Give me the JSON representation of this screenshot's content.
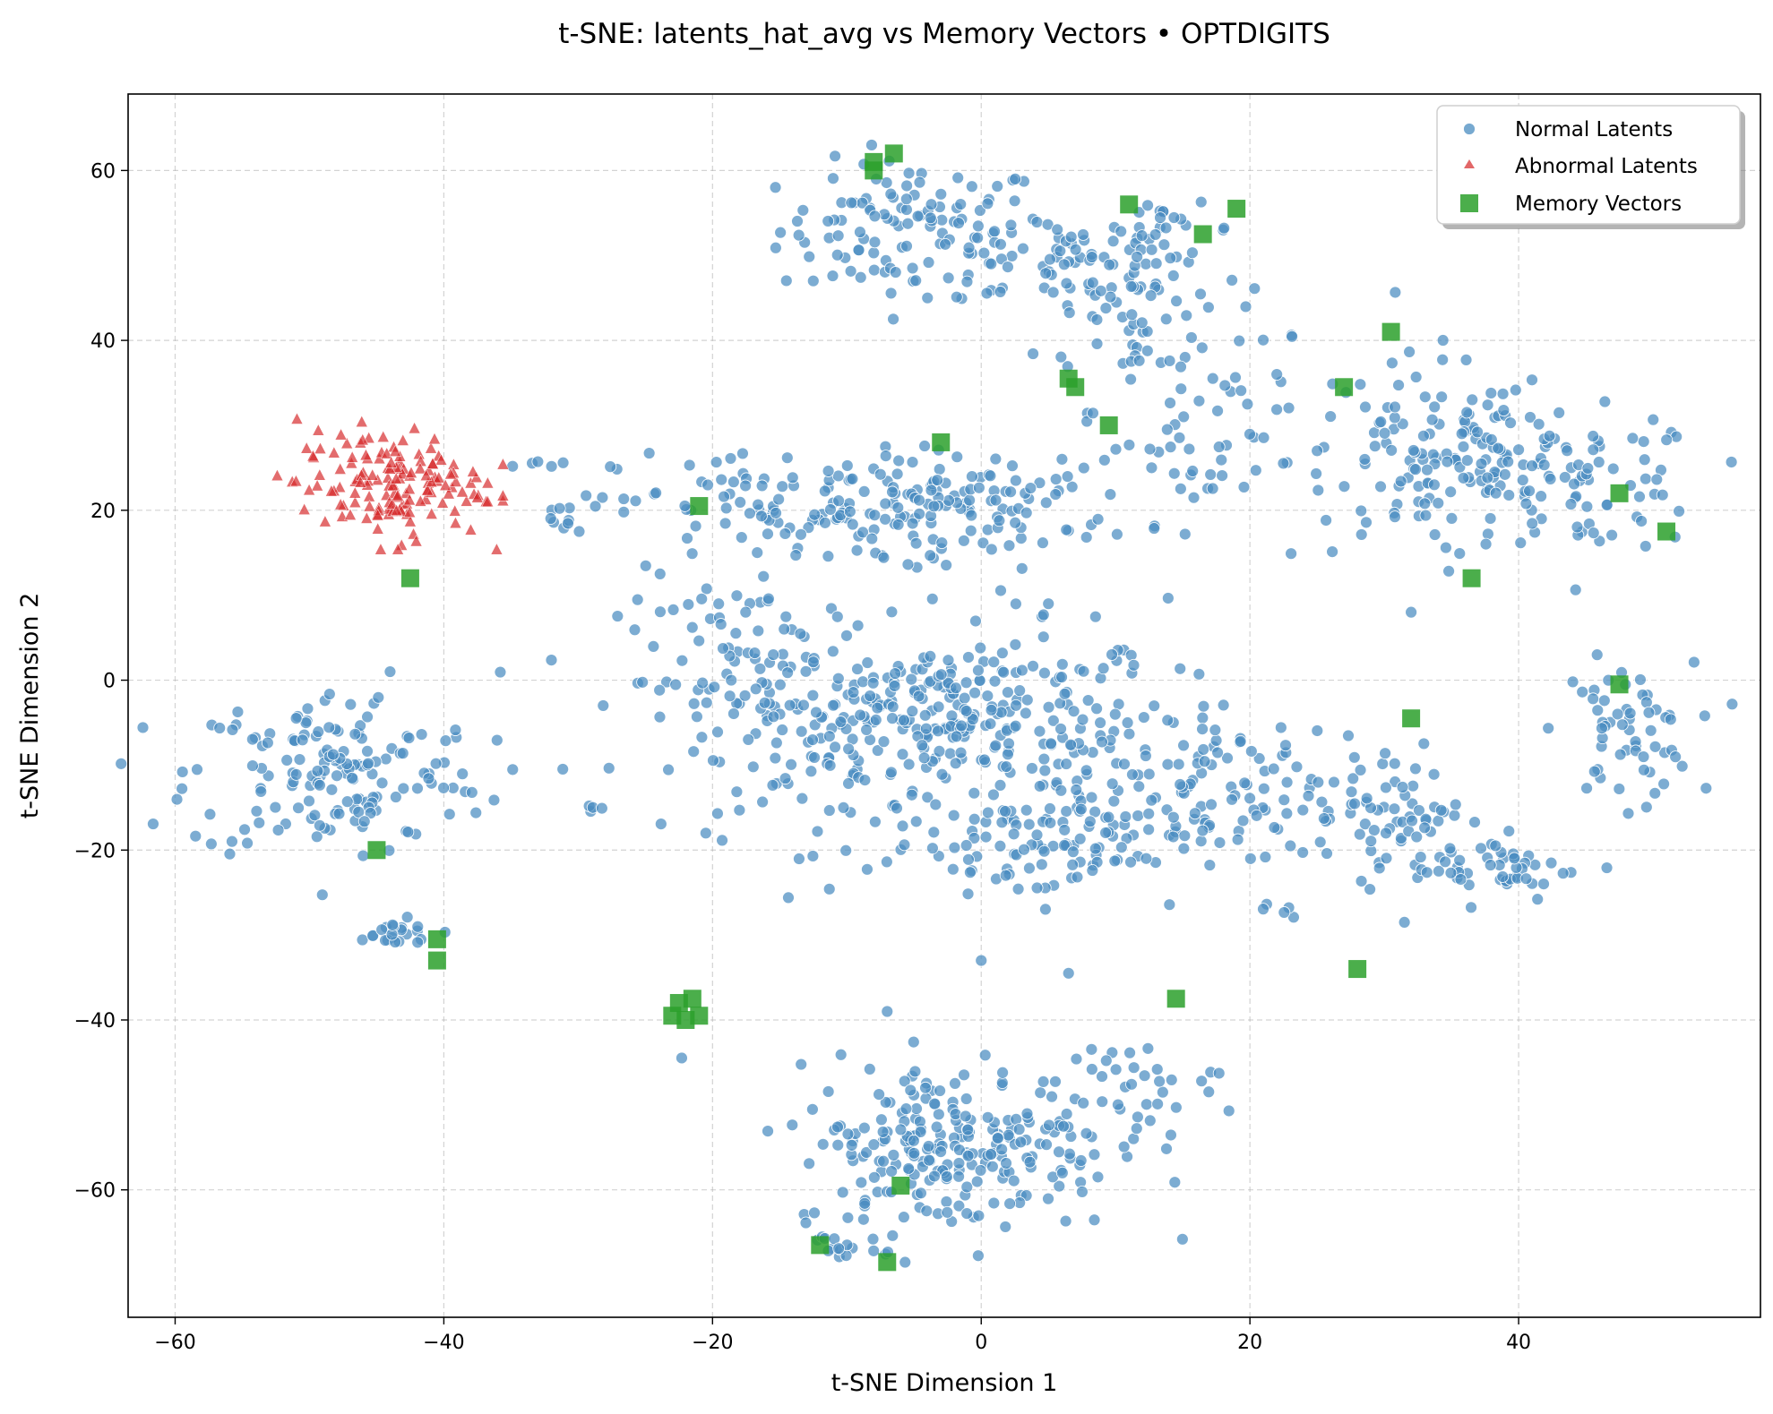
{
  "chart_data": {
    "type": "scatter",
    "title": "t-SNE: latents_hat_avg vs Memory Vectors • OPTDIGITS",
    "xlabel": "t-SNE Dimension 1",
    "ylabel": "t-SNE Dimension 2",
    "xlim": [
      -63.5,
      58
    ],
    "ylim": [
      -75,
      69
    ],
    "xticks": [
      -60,
      -40,
      -20,
      0,
      20,
      40
    ],
    "yticks": [
      60,
      40,
      20,
      0,
      -20,
      -40,
      -60
    ],
    "xtick_labels": [
      "−60",
      "−40",
      "−20",
      "0",
      "20",
      "40"
    ],
    "ytick_labels": [
      "60",
      "40",
      "20",
      "0",
      "−20",
      "−40",
      "−60"
    ],
    "grid": true,
    "legend_position": "top-right",
    "series": [
      {
        "name": "Normal Latents",
        "marker": "circle",
        "color": "#4a8cc0",
        "clusters": [
          {
            "cx": -5,
            "cy": 53,
            "sx": 5,
            "sy": 4,
            "n": 110
          },
          {
            "cx": 6,
            "cy": 50,
            "sx": 5,
            "sy": 3.5,
            "n": 70
          },
          {
            "cx": 12,
            "cy": 42,
            "sx": 4,
            "sy": 5,
            "n": 55
          },
          {
            "cx": 17,
            "cy": 30,
            "sx": 3,
            "sy": 6,
            "n": 45
          },
          {
            "cx": 14,
            "cy": 53,
            "sx": 2.5,
            "sy": 1.5,
            "n": 18
          },
          {
            "cx": 33,
            "cy": 26,
            "sx": 5,
            "sy": 6,
            "n": 110
          },
          {
            "cx": 45,
            "cy": 23,
            "sx": 4.5,
            "sy": 4,
            "n": 80
          },
          {
            "cx": 38,
            "cy": 27,
            "sx": 3,
            "sy": 3,
            "n": 30
          },
          {
            "cx": 48,
            "cy": -6,
            "sx": 2.5,
            "sy": 4,
            "n": 60
          },
          {
            "cx": -48,
            "cy": -11,
            "sx": 5.5,
            "sy": 5,
            "n": 160
          },
          {
            "cx": -44,
            "cy": -30,
            "sx": 2,
            "sy": 0.9,
            "n": 22
          },
          {
            "cx": -13,
            "cy": 20,
            "sx": 7,
            "sy": 3.5,
            "n": 130
          },
          {
            "cx": 0,
            "cy": 21,
            "sx": 6,
            "sy": 3,
            "n": 90
          },
          {
            "cx": -17,
            "cy": 0,
            "sx": 5,
            "sy": 6,
            "n": 120
          },
          {
            "cx": -8,
            "cy": -8,
            "sx": 5,
            "sy": 6,
            "n": 110
          },
          {
            "cx": -2,
            "cy": -4,
            "sx": 4,
            "sy": 5,
            "n": 120
          },
          {
            "cx": 7,
            "cy": -8,
            "sx": 5,
            "sy": 6,
            "n": 110
          },
          {
            "cx": 4,
            "cy": -20,
            "sx": 6,
            "sy": 3,
            "n": 80
          },
          {
            "cx": 17,
            "cy": -14,
            "sx": 4,
            "sy": 4,
            "n": 80
          },
          {
            "cx": 30,
            "cy": -15,
            "sx": 3,
            "sy": 4,
            "n": 70
          },
          {
            "cx": 38,
            "cy": -22,
            "sx": 3,
            "sy": 2,
            "n": 50
          },
          {
            "cx": -2,
            "cy": -55,
            "sx": 6,
            "sy": 5,
            "n": 240
          },
          {
            "cx": 10,
            "cy": -48,
            "sx": 4,
            "sy": 2.5,
            "n": 40
          },
          {
            "cx": -9,
            "cy": -67,
            "sx": 1.5,
            "sy": 1,
            "n": 12
          },
          {
            "cx": -31,
            "cy": 19,
            "sx": 1,
            "sy": 1,
            "n": 10
          },
          {
            "cx": -33,
            "cy": 25.5,
            "sx": 1,
            "sy": 0.3,
            "n": 5
          },
          {
            "cx": -29,
            "cy": -15,
            "sx": 0.6,
            "sy": 0.3,
            "n": 4
          },
          {
            "cx": 22,
            "cy": -27,
            "sx": 1,
            "sy": 0.6,
            "n": 5
          },
          {
            "cx": 10,
            "cy": 2,
            "sx": 2,
            "sy": 1,
            "n": 10
          }
        ]
      },
      {
        "name": "Abnormal Latents",
        "marker": "triangle",
        "color": "#d62728",
        "clusters": [
          {
            "cx": -44,
            "cy": 23,
            "sx": 3.5,
            "sy": 3.2,
            "n": 150
          }
        ]
      },
      {
        "name": "Memory Vectors",
        "marker": "square",
        "color": "#2ca02c",
        "points": [
          [
            -8,
            61
          ],
          [
            -8,
            60
          ],
          [
            -6.5,
            62
          ],
          [
            11,
            56
          ],
          [
            19,
            55.5
          ],
          [
            16.5,
            52.5
          ],
          [
            6.5,
            35.5
          ],
          [
            7,
            34.5
          ],
          [
            9.5,
            30
          ],
          [
            -3,
            28
          ],
          [
            -21,
            20.5
          ],
          [
            -42.5,
            12
          ],
          [
            27,
            34.5
          ],
          [
            30.5,
            41
          ],
          [
            47.5,
            22
          ],
          [
            51,
            17.5
          ],
          [
            36.5,
            12
          ],
          [
            47.5,
            -0.5
          ],
          [
            32,
            -4.5
          ],
          [
            -45,
            -20
          ],
          [
            -40.5,
            -30.5
          ],
          [
            -40.5,
            -33
          ],
          [
            -23,
            -39.5
          ],
          [
            -22,
            -40
          ],
          [
            -21.5,
            -37.5
          ],
          [
            -21,
            -39.5
          ],
          [
            -22.5,
            -38
          ],
          [
            14.5,
            -37.5
          ],
          [
            28,
            -34
          ],
          [
            -6,
            -59.5
          ],
          [
            -12,
            -66.5
          ],
          [
            -7,
            -68.5
          ]
        ]
      }
    ],
    "noise": [
      {
        "x": -12.5,
        "y": 47
      },
      {
        "x": -4,
        "y": 45
      },
      {
        "x": 22,
        "y": 36
      },
      {
        "x": 32,
        "y": 8
      },
      {
        "x": -44,
        "y": 1
      },
      {
        "x": -20.5,
        "y": -18
      },
      {
        "x": 0,
        "y": -33
      },
      {
        "x": 6.5,
        "y": -34.5
      },
      {
        "x": -7,
        "y": -39
      },
      {
        "x": 31.5,
        "y": -28.5
      },
      {
        "x": 5,
        "y": 9
      },
      {
        "x": 25,
        "y": 27
      }
    ]
  }
}
